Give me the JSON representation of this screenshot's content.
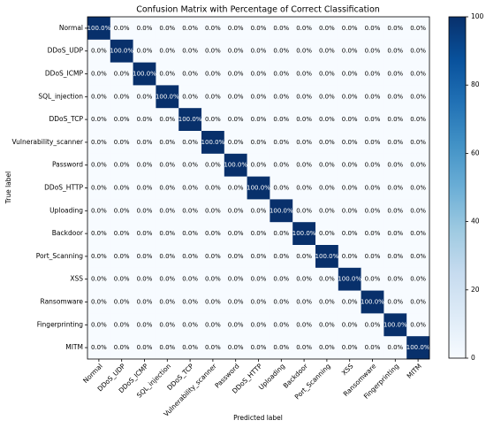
{
  "chart_data": {
    "type": "heatmap",
    "title": "Confusion Matrix with Percentage of Correct Classification",
    "xlabel": "Predicted label",
    "ylabel": "True label",
    "categories": [
      "Normal",
      "DDoS_UDP",
      "DDoS_ICMP",
      "SQL_injection",
      "DDoS_TCP",
      "Vulnerability_scanner",
      "Password",
      "DDoS_HTTP",
      "Uploading",
      "Backdoor",
      "Port_Scanning",
      "XSS",
      "Ransomware",
      "Fingerprinting",
      "MITM"
    ],
    "values": [
      [
        100,
        0,
        0,
        0,
        0,
        0,
        0,
        0,
        0,
        0,
        0,
        0,
        0,
        0,
        0
      ],
      [
        0,
        100,
        0,
        0,
        0,
        0,
        0,
        0,
        0,
        0,
        0,
        0,
        0,
        0,
        0
      ],
      [
        0,
        0,
        100,
        0,
        0,
        0,
        0,
        0,
        0,
        0,
        0,
        0,
        0,
        0,
        0
      ],
      [
        0,
        0,
        0,
        100,
        0,
        0,
        0,
        0,
        0,
        0,
        0,
        0,
        0,
        0,
        0
      ],
      [
        0,
        0,
        0,
        0,
        100,
        0,
        0,
        0,
        0,
        0,
        0,
        0,
        0,
        0,
        0
      ],
      [
        0,
        0,
        0,
        0,
        0,
        100,
        0,
        0,
        0,
        0,
        0,
        0,
        0,
        0,
        0
      ],
      [
        0,
        0,
        0,
        0,
        0,
        0,
        100,
        0,
        0,
        0,
        0,
        0,
        0,
        0,
        0
      ],
      [
        0,
        0,
        0,
        0,
        0,
        0,
        0,
        100,
        0,
        0,
        0,
        0,
        0,
        0,
        0
      ],
      [
        0,
        0,
        0,
        0,
        0,
        0,
        0,
        0,
        100,
        0,
        0,
        0,
        0,
        0,
        0
      ],
      [
        0,
        0,
        0,
        0,
        0,
        0,
        0,
        0,
        0,
        100,
        0,
        0,
        0,
        0,
        0
      ],
      [
        0,
        0,
        0,
        0,
        0,
        0,
        0,
        0,
        0,
        0,
        100,
        0,
        0,
        0,
        0
      ],
      [
        0,
        0,
        0,
        0,
        0,
        0,
        0,
        0,
        0,
        0,
        0,
        100,
        0,
        0,
        0
      ],
      [
        0,
        0,
        0,
        0,
        0,
        0,
        0,
        0,
        0,
        0,
        0,
        0,
        100,
        0,
        0
      ],
      [
        0,
        0,
        0,
        0,
        0,
        0,
        0,
        0,
        0,
        0,
        0,
        0,
        0,
        100,
        0
      ],
      [
        0,
        0,
        0,
        0,
        0,
        0,
        0,
        0,
        0,
        0,
        0,
        0,
        0,
        0,
        100
      ]
    ],
    "value_labels": [
      [
        "100.0%",
        "0.0%",
        "0.0%",
        "0.0%",
        "0.0%",
        "0.0%",
        "0.0%",
        "0.0%",
        "0.0%",
        "0.0%",
        "0.0%",
        "0.0%",
        "0.0%",
        "0.0%",
        "0.0%"
      ],
      [
        "0.0%",
        "100.0%",
        "0.0%",
        "0.0%",
        "0.0%",
        "0.0%",
        "0.0%",
        "0.0%",
        "0.0%",
        "0.0%",
        "0.0%",
        "0.0%",
        "0.0%",
        "0.0%",
        "0.0%"
      ],
      [
        "0.0%",
        "0.0%",
        "100.0%",
        "0.0%",
        "0.0%",
        "0.0%",
        "0.0%",
        "0.0%",
        "0.0%",
        "0.0%",
        "0.0%",
        "0.0%",
        "0.0%",
        "0.0%",
        "0.0%"
      ],
      [
        "0.0%",
        "0.0%",
        "0.0%",
        "100.0%",
        "0.0%",
        "0.0%",
        "0.0%",
        "0.0%",
        "0.0%",
        "0.0%",
        "0.0%",
        "0.0%",
        "0.0%",
        "0.0%",
        "0.0%"
      ],
      [
        "0.0%",
        "0.0%",
        "0.0%",
        "0.0%",
        "100.0%",
        "0.0%",
        "0.0%",
        "0.0%",
        "0.0%",
        "0.0%",
        "0.0%",
        "0.0%",
        "0.0%",
        "0.0%",
        "0.0%"
      ],
      [
        "0.0%",
        "0.0%",
        "0.0%",
        "0.0%",
        "0.0%",
        "100.0%",
        "0.0%",
        "0.0%",
        "0.0%",
        "0.0%",
        "0.0%",
        "0.0%",
        "0.0%",
        "0.0%",
        "0.0%"
      ],
      [
        "0.0%",
        "0.0%",
        "0.0%",
        "0.0%",
        "0.0%",
        "0.0%",
        "100.0%",
        "0.0%",
        "0.0%",
        "0.0%",
        "0.0%",
        "0.0%",
        "0.0%",
        "0.0%",
        "0.0%"
      ],
      [
        "0.0%",
        "0.0%",
        "0.0%",
        "0.0%",
        "0.0%",
        "0.0%",
        "0.0%",
        "100.0%",
        "0.0%",
        "0.0%",
        "0.0%",
        "0.0%",
        "0.0%",
        "0.0%",
        "0.0%"
      ],
      [
        "0.0%",
        "0.0%",
        "0.0%",
        "0.0%",
        "0.0%",
        "0.0%",
        "0.0%",
        "0.0%",
        "100.0%",
        "0.0%",
        "0.0%",
        "0.0%",
        "0.0%",
        "0.0%",
        "0.0%"
      ],
      [
        "0.0%",
        "0.0%",
        "0.0%",
        "0.0%",
        "0.0%",
        "0.0%",
        "0.0%",
        "0.0%",
        "0.0%",
        "100.0%",
        "0.0%",
        "0.0%",
        "0.0%",
        "0.0%",
        "0.0%"
      ],
      [
        "0.0%",
        "0.0%",
        "0.0%",
        "0.0%",
        "0.0%",
        "0.0%",
        "0.0%",
        "0.0%",
        "0.0%",
        "0.0%",
        "100.0%",
        "0.0%",
        "0.0%",
        "0.0%",
        "0.0%"
      ],
      [
        "0.0%",
        "0.0%",
        "0.0%",
        "0.0%",
        "0.0%",
        "0.0%",
        "0.0%",
        "0.0%",
        "0.0%",
        "0.0%",
        "0.0%",
        "100.0%",
        "0.0%",
        "0.0%",
        "0.0%"
      ],
      [
        "0.0%",
        "0.0%",
        "0.0%",
        "0.0%",
        "0.0%",
        "0.0%",
        "0.0%",
        "0.0%",
        "0.0%",
        "0.0%",
        "0.0%",
        "0.0%",
        "100.0%",
        "0.0%",
        "0.0%"
      ],
      [
        "0.0%",
        "0.0%",
        "0.0%",
        "0.0%",
        "0.0%",
        "0.0%",
        "0.0%",
        "0.0%",
        "0.0%",
        "0.0%",
        "0.0%",
        "0.0%",
        "0.0%",
        "100.0%",
        "0.0%"
      ],
      [
        "0.0%",
        "0.0%",
        "0.0%",
        "0.0%",
        "0.0%",
        "0.0%",
        "0.0%",
        "0.0%",
        "0.0%",
        "0.0%",
        "0.0%",
        "0.0%",
        "0.0%",
        "0.0%",
        "100.0%"
      ]
    ],
    "colorscale": [
      "#f7fbff",
      "#deebf7",
      "#c6dbef",
      "#9ecae1",
      "#6baed6",
      "#4292c6",
      "#2171b5",
      "#08519c",
      "#08306b"
    ],
    "colorbar_lim": [
      0,
      100
    ],
    "colorbar_ticks": [
      0,
      20,
      40,
      60,
      80,
      100
    ]
  }
}
